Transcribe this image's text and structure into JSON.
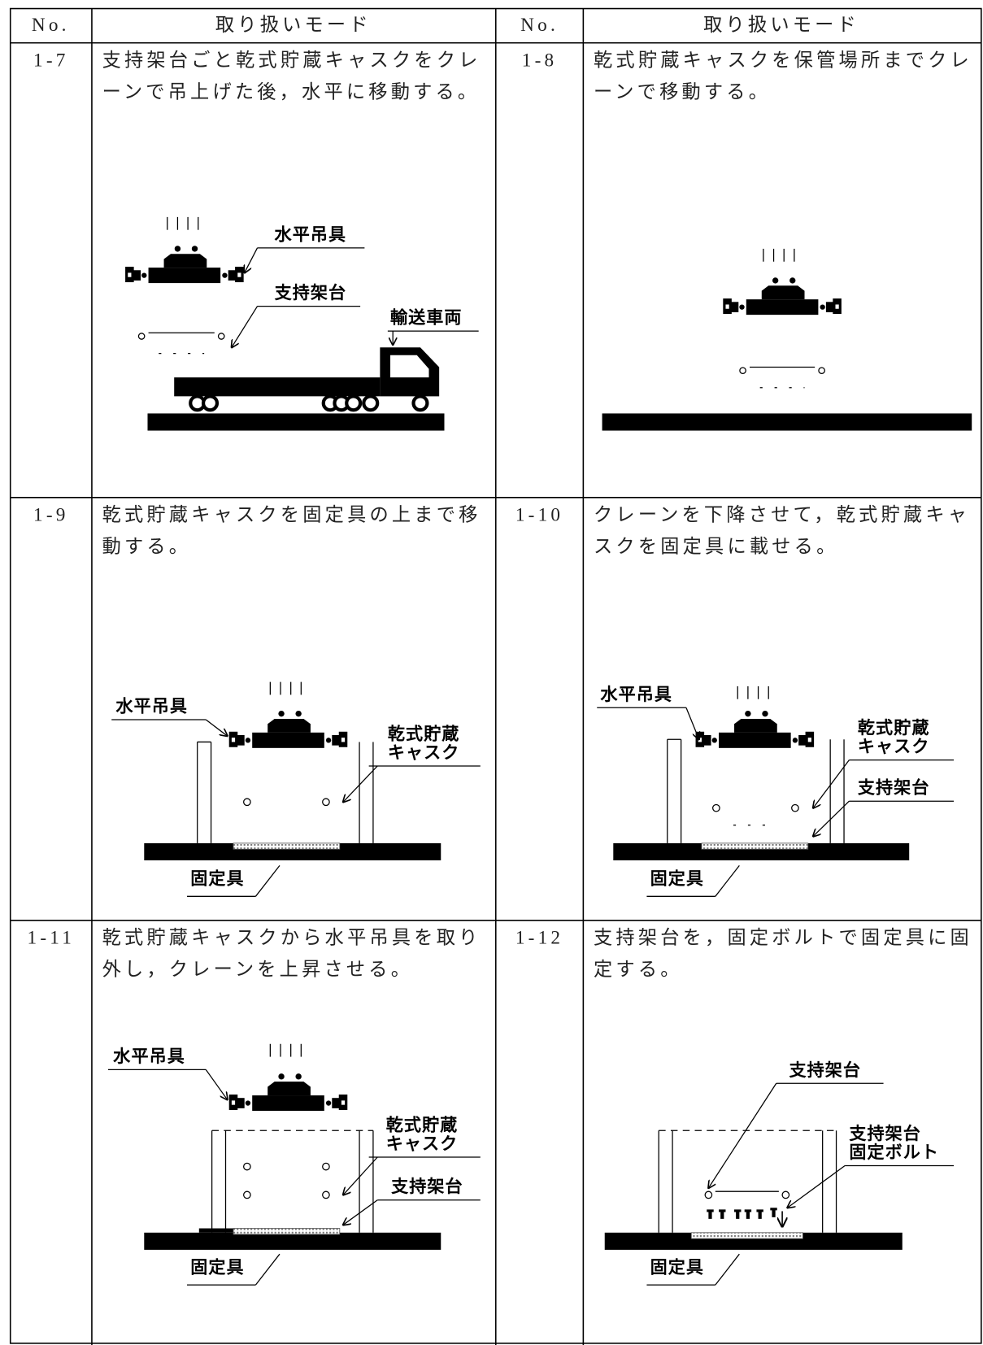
{
  "header": {
    "no": "No.",
    "mode": "取り扱いモード"
  },
  "cells": [
    {
      "no": "1-7",
      "text": [
        "支持架台ごと乾式貯蔵キャスクをクレ",
        "ーンで吊上げた後，水平に移動する。"
      ],
      "labels": [
        [
          "水平吊具"
        ],
        [
          "支持架台"
        ],
        [
          "輸送車両"
        ]
      ]
    },
    {
      "no": "1-8",
      "text": [
        "乾式貯蔵キャスクを保管場所までクレ",
        "ーンで移動する。"
      ],
      "labels": []
    },
    {
      "no": "1-9",
      "text": [
        "乾式貯蔵キャスクを固定具の上まで移",
        "動する。"
      ],
      "labels": [
        [
          "水平吊具"
        ],
        [
          "乾式貯蔵",
          "キャスク"
        ],
        [
          "固定具"
        ]
      ]
    },
    {
      "no": "1-10",
      "text": [
        "クレーンを下降させて，乾式貯蔵キャ",
        "スクを固定具に載せる。"
      ],
      "labels": [
        [
          "水平吊具"
        ],
        [
          "乾式貯蔵",
          "キャスク"
        ],
        [
          "支持架台"
        ],
        [
          "固定具"
        ]
      ]
    },
    {
      "no": "1-11",
      "text": [
        "乾式貯蔵キャスクから水平吊具を取り",
        "外し，クレーンを上昇させる。"
      ],
      "labels": [
        [
          "水平吊具"
        ],
        [
          "乾式貯蔵",
          "キャスク"
        ],
        [
          "支持架台"
        ],
        [
          "固定具"
        ]
      ]
    },
    {
      "no": "1-12",
      "text": [
        "支持架台を，固定ボルトで固定具に固",
        "定する。"
      ],
      "labels": [
        [
          "支持架台"
        ],
        [
          "支持架台",
          "固定ボルト"
        ],
        [
          "固定具"
        ]
      ]
    }
  ]
}
